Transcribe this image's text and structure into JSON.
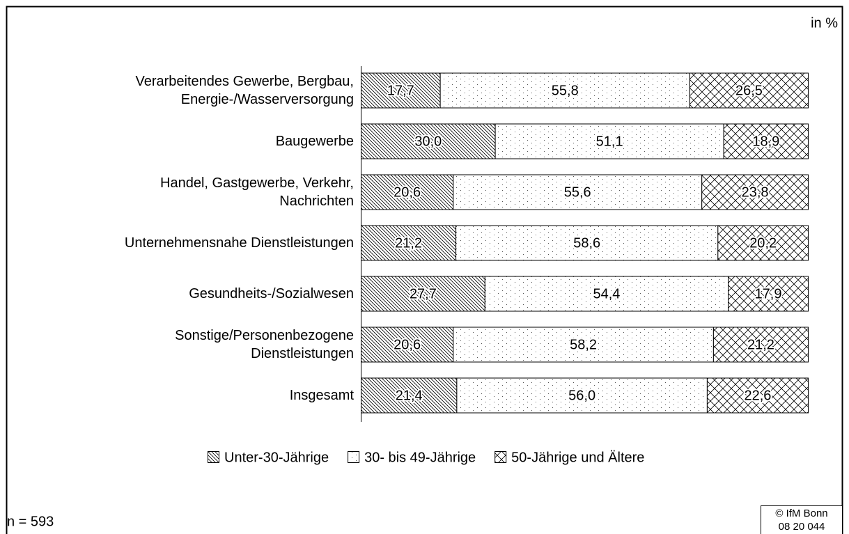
{
  "chart_data": {
    "type": "stacked_barh",
    "unit_note": "in %",
    "categories": [
      "Verarbeitendes Gewerbe, Bergbau,\nEnergie-/Wasserversorgung",
      "Baugewerbe",
      "Handel, Gastgewerbe, Verkehr,\nNachrichten",
      "Unternehmensnahe Dienstleistungen",
      "Gesundheits-/Sozialwesen",
      "Sonstige/Personenbezogene\nDienstleistungen",
      "Insgesamt"
    ],
    "series": [
      {
        "name": "Unter-30-Jährige",
        "color": "#000000",
        "pattern": "hatch",
        "values": [
          17.7,
          30.0,
          20.6,
          21.2,
          27.7,
          20.6,
          21.4
        ],
        "value_labels": [
          "17,7",
          "30,0",
          "20,6",
          "21,2",
          "27,7",
          "20,6",
          "21,4"
        ]
      },
      {
        "name": "30- bis 49-Jährige",
        "color": "#000000",
        "pattern": "dots",
        "values": [
          55.8,
          51.1,
          55.6,
          58.6,
          54.4,
          58.2,
          56.0
        ],
        "value_labels": [
          "55,8",
          "51,1",
          "55,6",
          "58,6",
          "54,4",
          "58,2",
          "56,0"
        ]
      },
      {
        "name": "50-Jährige und Ältere",
        "color": "#000000",
        "pattern": "crosshatch",
        "values": [
          26.5,
          18.9,
          23.8,
          20.2,
          17.9,
          21.2,
          22.6
        ],
        "value_labels": [
          "26,5",
          "18,9",
          "23,8",
          "20,2",
          "17,9",
          "21,2",
          "22,6"
        ]
      }
    ],
    "xlim": [
      0,
      100
    ],
    "legend": "bottom",
    "note": "n = 593",
    "source": [
      "© IfM Bonn",
      "08 20 044"
    ]
  }
}
